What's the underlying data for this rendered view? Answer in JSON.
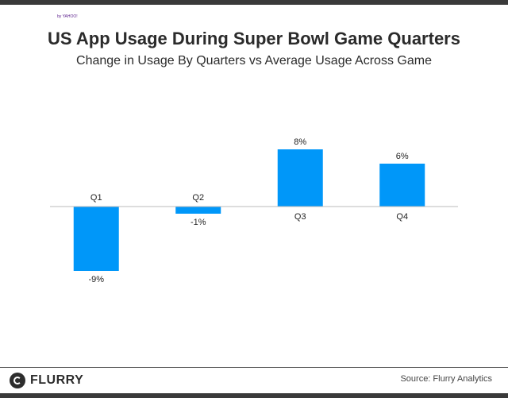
{
  "title": "US App Usage During Super Bowl Game Quarters",
  "subtitle": "Change in Usage By Quarters vs Average Usage Across Game",
  "chart_data": {
    "type": "bar",
    "categories": [
      "Q1",
      "Q2",
      "Q3",
      "Q4"
    ],
    "values": [
      -9,
      -1,
      8,
      6
    ],
    "value_labels": [
      "-9%",
      "-1%",
      "8%",
      "6%"
    ],
    "unit": "%",
    "ylim": [
      -10,
      10
    ],
    "grid": false,
    "bar_color": "#0097f9",
    "axis_color": "#bbbbbb"
  },
  "footer": {
    "logo_text": "FLURRY",
    "logo_sub": "by YAHOO!",
    "source": "Source: Flurry Analytics"
  }
}
